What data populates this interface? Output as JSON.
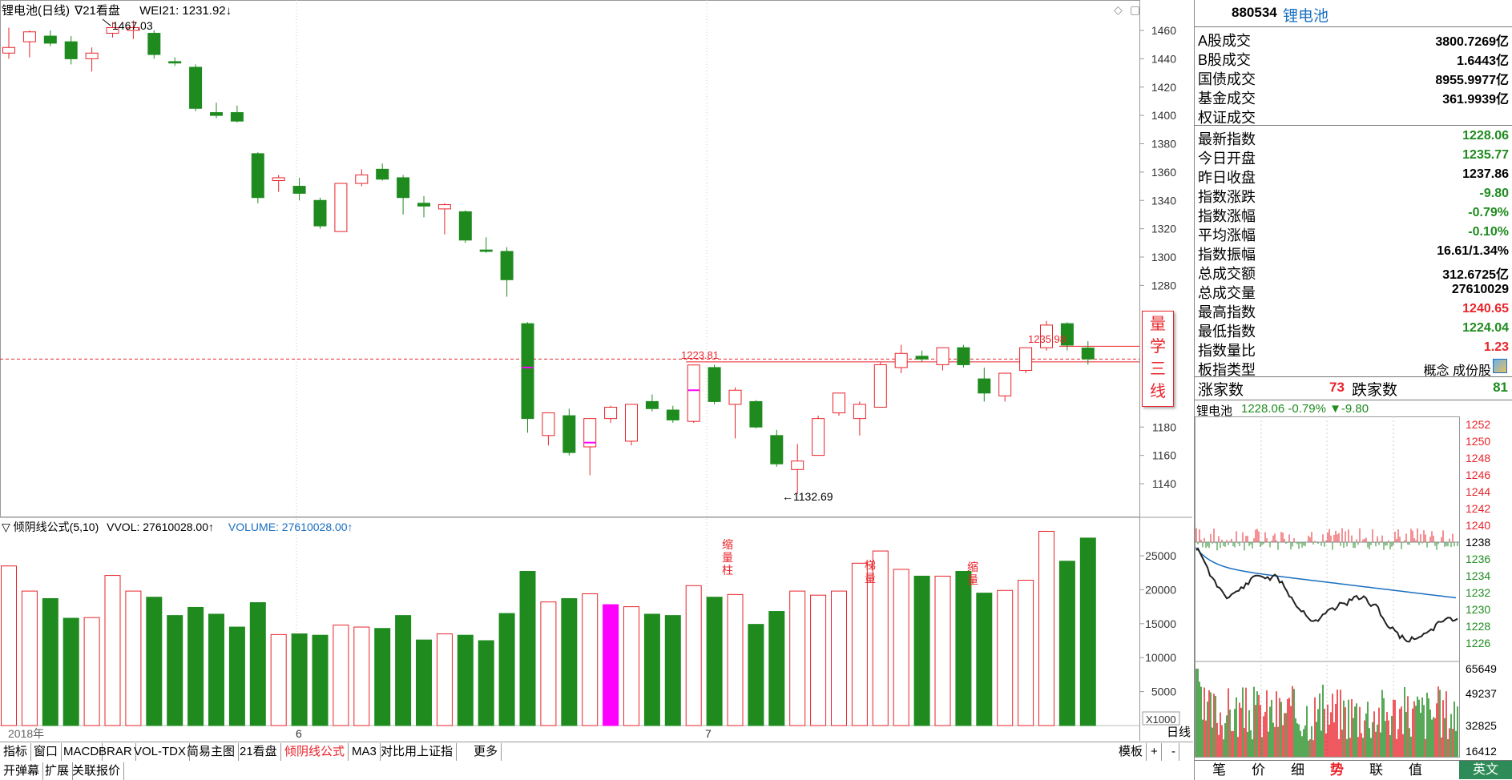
{
  "header": {
    "title": "锂电池(日线)",
    "mode": "∇21看盘",
    "indicator": "WEI21: 1231.92↓",
    "high_marker": "1467.03",
    "low_marker": "←1132.69",
    "price_label_mid": "1223.81",
    "price_label_right": "1235.98"
  },
  "colors": {
    "up": "#e8232a",
    "down": "#1f8b1f",
    "grid": "#c8c8c8",
    "dashed_line": "#e8232a",
    "highlight": "#ff00ff",
    "accent_blue": "#1a6fc0"
  },
  "price_axis": [
    "1460",
    "1440",
    "1420",
    "1400",
    "1380",
    "1360",
    "1340",
    "1320",
    "1300",
    "1280",
    "1180",
    "1160",
    "1140"
  ],
  "vol_axis": [
    "25000",
    "20000",
    "15000",
    "10000",
    "5000"
  ],
  "vol_unit": "X1000",
  "date_labels": {
    "y2018": "2018年",
    "m6": "6",
    "m7": "7"
  },
  "volume_header": {
    "formula": "▽ 倾阴线公式(5,10)",
    "vvol": "VVOL: 27610028.00↑",
    "volume": "VOLUME: 27610028.00↑"
  },
  "annotations": [
    {
      "text": "缩量柱"
    },
    {
      "text": "梯量"
    },
    {
      "text": "缩量"
    }
  ],
  "side_stamp": [
    "量",
    "学",
    "三",
    "线"
  ],
  "chart_data": {
    "type": "candlestick",
    "title": "锂电池(日线)",
    "candles": [
      {
        "o": 1444,
        "h": 1462,
        "l": 1440,
        "c": 1448
      },
      {
        "o": 1452,
        "h": 1460,
        "l": 1441,
        "c": 1459
      },
      {
        "o": 1456,
        "h": 1460,
        "l": 1449,
        "c": 1451
      },
      {
        "o": 1452,
        "h": 1456,
        "l": 1436,
        "c": 1440
      },
      {
        "o": 1440,
        "h": 1448,
        "l": 1431,
        "c": 1444
      },
      {
        "o": 1458,
        "h": 1466,
        "l": 1455,
        "c": 1462
      },
      {
        "o": 1460,
        "h": 1467.03,
        "l": 1454,
        "c": 1462
      },
      {
        "o": 1458,
        "h": 1460,
        "l": 1440,
        "c": 1443
      },
      {
        "o": 1438,
        "h": 1441,
        "l": 1435,
        "c": 1437
      },
      {
        "o": 1434,
        "h": 1436,
        "l": 1403,
        "c": 1405
      },
      {
        "o": 1402,
        "h": 1409,
        "l": 1398,
        "c": 1400
      },
      {
        "o": 1402,
        "h": 1407,
        "l": 1395,
        "c": 1396
      },
      {
        "o": 1373,
        "h": 1374,
        "l": 1338,
        "c": 1342
      },
      {
        "o": 1354,
        "h": 1358,
        "l": 1346,
        "c": 1356
      },
      {
        "o": 1350,
        "h": 1356,
        "l": 1340,
        "c": 1345
      },
      {
        "o": 1340,
        "h": 1342,
        "l": 1320,
        "c": 1322
      },
      {
        "o": 1318,
        "h": 1352,
        "l": 1318,
        "c": 1352
      },
      {
        "o": 1352,
        "h": 1362,
        "l": 1350,
        "c": 1358
      },
      {
        "o": 1362,
        "h": 1366,
        "l": 1354,
        "c": 1355
      },
      {
        "o": 1356,
        "h": 1358,
        "l": 1330,
        "c": 1342
      },
      {
        "o": 1338,
        "h": 1343,
        "l": 1328,
        "c": 1336
      },
      {
        "o": 1334,
        "h": 1338,
        "l": 1316,
        "c": 1337
      },
      {
        "o": 1332,
        "h": 1333,
        "l": 1310,
        "c": 1312
      },
      {
        "o": 1305,
        "h": 1314,
        "l": 1303,
        "c": 1304
      },
      {
        "o": 1304,
        "h": 1307,
        "l": 1272,
        "c": 1284
      },
      {
        "o": 1253,
        "h": 1254,
        "l": 1176,
        "c": 1186
      },
      {
        "o": 1174,
        "h": 1190,
        "l": 1167,
        "c": 1190
      },
      {
        "o": 1188,
        "h": 1193,
        "l": 1160,
        "c": 1162
      },
      {
        "o": 1166,
        "h": 1186,
        "l": 1146,
        "c": 1186
      },
      {
        "o": 1186,
        "h": 1195,
        "l": 1183,
        "c": 1194
      },
      {
        "o": 1170,
        "h": 1196,
        "l": 1167,
        "c": 1196
      },
      {
        "o": 1198,
        "h": 1203,
        "l": 1191,
        "c": 1193
      },
      {
        "o": 1192,
        "h": 1195,
        "l": 1183,
        "c": 1185
      },
      {
        "o": 1184,
        "h": 1224,
        "l": 1183,
        "c": 1223.81
      },
      {
        "o": 1222,
        "h": 1224,
        "l": 1196,
        "c": 1198
      },
      {
        "o": 1196,
        "h": 1208,
        "l": 1172,
        "c": 1206
      },
      {
        "o": 1198,
        "h": 1199,
        "l": 1179,
        "c": 1180
      },
      {
        "o": 1174,
        "h": 1178,
        "l": 1152,
        "c": 1154
      },
      {
        "o": 1150,
        "h": 1168,
        "l": 1132.69,
        "c": 1156
      },
      {
        "o": 1160,
        "h": 1188,
        "l": 1160,
        "c": 1186
      },
      {
        "o": 1190,
        "h": 1204,
        "l": 1188,
        "c": 1204
      },
      {
        "o": 1186,
        "h": 1198,
        "l": 1174,
        "c": 1196
      },
      {
        "o": 1194,
        "h": 1226,
        "l": 1194,
        "c": 1224
      },
      {
        "o": 1222,
        "h": 1238,
        "l": 1218,
        "c": 1232
      },
      {
        "o": 1230,
        "h": 1234,
        "l": 1226,
        "c": 1228
      },
      {
        "o": 1224,
        "h": 1236,
        "l": 1220,
        "c": 1236
      },
      {
        "o": 1236,
        "h": 1238,
        "l": 1222,
        "c": 1224
      },
      {
        "o": 1214,
        "h": 1222,
        "l": 1198,
        "c": 1204
      },
      {
        "o": 1202,
        "h": 1218,
        "l": 1198,
        "c": 1218
      },
      {
        "o": 1220,
        "h": 1236,
        "l": 1218,
        "c": 1236
      },
      {
        "o": 1236,
        "h": 1255,
        "l": 1234,
        "c": 1252
      },
      {
        "o": 1253,
        "h": 1254,
        "l": 1234,
        "c": 1237.86
      },
      {
        "o": 1235.77,
        "h": 1240.65,
        "l": 1224.04,
        "c": 1228.06
      }
    ],
    "volume_bars_k": [
      23500,
      19800,
      18700,
      15800,
      15900,
      22100,
      19800,
      18900,
      16200,
      17400,
      16400,
      14500,
      18100,
      13400,
      13500,
      13300,
      14800,
      14500,
      14300,
      16200,
      12600,
      13500,
      13300,
      12500,
      16500,
      22700,
      18200,
      18700,
      19400,
      17800,
      17500,
      16400,
      16200,
      20600,
      18900,
      19300,
      14900,
      16800,
      19800,
      19200,
      19800,
      23900,
      25700,
      23000,
      22000,
      22000,
      22700,
      19500,
      19900,
      21400,
      28600,
      24200,
      27610
    ],
    "dashed_price": 1228,
    "hline_1": 1237,
    "hline_2": 1226,
    "price_ylim": [
      1120,
      1470
    ]
  },
  "panel": {
    "code": "880534",
    "name": "锂电池",
    "rows": [
      {
        "label": "A股成交",
        "value": "3800.7269亿",
        "color": "#000"
      },
      {
        "label": "B股成交",
        "value": "1.6443亿",
        "color": "#000"
      },
      {
        "label": "国债成交",
        "value": "8955.9977亿",
        "color": "#000"
      },
      {
        "label": "基金成交",
        "value": "361.9939亿",
        "color": "#000"
      },
      {
        "label": "权证成交",
        "value": "",
        "color": "#000"
      }
    ],
    "rows2": [
      {
        "label": "最新指数",
        "value": "1228.06",
        "color": "#1f8b1f"
      },
      {
        "label": "今日开盘",
        "value": "1235.77",
        "color": "#1f8b1f"
      },
      {
        "label": "昨日收盘",
        "value": "1237.86",
        "color": "#000"
      },
      {
        "label": "指数涨跌",
        "value": "-9.80",
        "color": "#1f8b1f"
      },
      {
        "label": "指数涨幅",
        "value": "-0.79%",
        "color": "#1f8b1f"
      },
      {
        "label": "平均涨幅",
        "value": "-0.10%",
        "color": "#1f8b1f"
      },
      {
        "label": "指数振幅",
        "value": "16.61/1.34%",
        "color": "#000"
      },
      {
        "label": "总成交额",
        "value": "312.6725亿",
        "color": "#000"
      },
      {
        "label": "总成交量",
        "value": "27610029",
        "color": "#000"
      },
      {
        "label": "最高指数",
        "value": "1240.65",
        "color": "#e8232a"
      },
      {
        "label": "最低指数",
        "value": "1224.04",
        "color": "#1f8b1f"
      },
      {
        "label": "指数量比",
        "value": "1.23",
        "color": "#e8232a"
      },
      {
        "label": "板指类型",
        "value": "概念 成份股",
        "color": "#000"
      }
    ],
    "up_label": "涨家数",
    "up_count": "73",
    "down_label": "跌家数",
    "down_count": "81",
    "mini_title": "锂电池",
    "mini_price": "1228.06 -0.79% ▼-9.80",
    "mini_axis": [
      "1252",
      "1250",
      "1248",
      "1246",
      "1244",
      "1242",
      "1240",
      "1238",
      "1236",
      "1234",
      "1232",
      "1230",
      "1228",
      "1226"
    ],
    "mini_vol_axis": [
      "65649",
      "49237",
      "32825",
      "16412"
    ],
    "tabs": [
      "笔",
      "价",
      "细",
      "势",
      "联",
      "值"
    ],
    "ime": "英文"
  },
  "toolbar": {
    "row1": [
      "指标",
      "窗口",
      "MACD",
      "BRAR",
      "VOL-TDX",
      "简易主图",
      "21看盘",
      "倾阴线公式",
      "MA3",
      "对比用上证指",
      "更多"
    ],
    "row1_right": [
      "模板",
      "+",
      "-",
      "日线"
    ],
    "row2": [
      "开弹幕",
      "扩展",
      "关联报价"
    ]
  }
}
